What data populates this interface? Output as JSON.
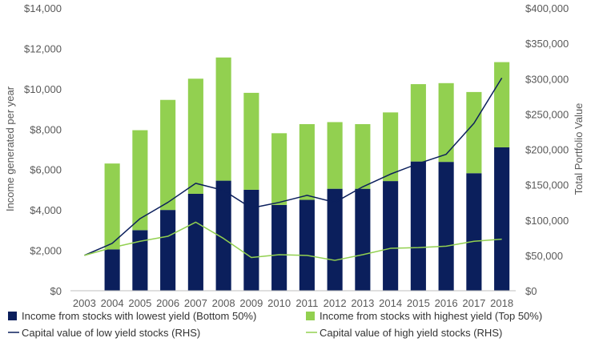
{
  "chart_data": {
    "type": "bar",
    "stacked": true,
    "categories": [
      "2003",
      "2004",
      "2005",
      "2006",
      "2007",
      "2008",
      "2009",
      "2010",
      "2011",
      "2012",
      "2013",
      "2014",
      "2015",
      "2016",
      "2017",
      "2018"
    ],
    "series": [
      {
        "name": "Income from stocks with lowest yield (Bottom 50%)",
        "kind": "bar",
        "axis": "left",
        "color": "#0b1f5c",
        "values": [
          0,
          2050,
          3000,
          4000,
          4800,
          5450,
          5000,
          4250,
          4500,
          5050,
          5050,
          5430,
          6400,
          6380,
          5820,
          7100
        ]
      },
      {
        "name": "Income from stocks with highest yield (Top 50%)",
        "kind": "bar",
        "axis": "left",
        "color": "#92d050",
        "values": [
          0,
          4250,
          4950,
          5450,
          5700,
          6100,
          4800,
          3550,
          3750,
          3300,
          3200,
          3400,
          3830,
          3900,
          4020,
          4220
        ]
      },
      {
        "name": "Capital value of low yield stocks (RHS)",
        "kind": "line",
        "axis": "right",
        "color": "#0b1f5c",
        "values": [
          50000,
          67000,
          102000,
          125000,
          152000,
          142000,
          117000,
          125000,
          135000,
          125000,
          147000,
          165000,
          180000,
          193000,
          237000,
          301000
        ]
      },
      {
        "name": "Capital value of high yield stocks (RHS)",
        "kind": "line",
        "axis": "right",
        "color": "#92d050",
        "values": [
          50000,
          61000,
          70000,
          77000,
          97000,
          74000,
          47000,
          51000,
          50000,
          43000,
          51000,
          60000,
          61000,
          63000,
          70000,
          73000
        ]
      }
    ],
    "ylabel": "Income generated per year",
    "y2label": "Total Portfolio Value",
    "ylim": [
      0,
      14000
    ],
    "y2lim": [
      0,
      400000
    ],
    "yticks": [
      "$0",
      "$2,000",
      "$4,000",
      "$6,000",
      "$8,000",
      "$10,000",
      "$12,000",
      "$14,000"
    ],
    "y2ticks": [
      "$0",
      "$50,000",
      "$100,000",
      "$150,000",
      "$200,000",
      "$250,000",
      "$300,000",
      "$350,000",
      "$400,000"
    ],
    "grid": false,
    "legend_position": "bottom"
  }
}
